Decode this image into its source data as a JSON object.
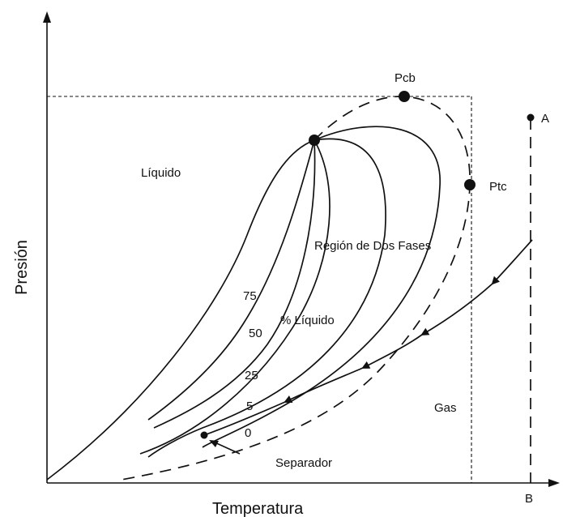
{
  "axes": {
    "x_title": "Temperatura",
    "y_title": "Presión",
    "x_end_label": "B"
  },
  "regions": {
    "liquid": "Líquido",
    "two_phase": "Región de Dos Fases",
    "percent_liquid": "% Líquido",
    "gas": "Gas"
  },
  "quality_lines": [
    "75",
    "50",
    "25",
    "5",
    "0"
  ],
  "points": {
    "cricondenbar": "Pcb",
    "cricondentherm": "Ptc",
    "reservoir": "A",
    "separator": "Separador"
  }
}
